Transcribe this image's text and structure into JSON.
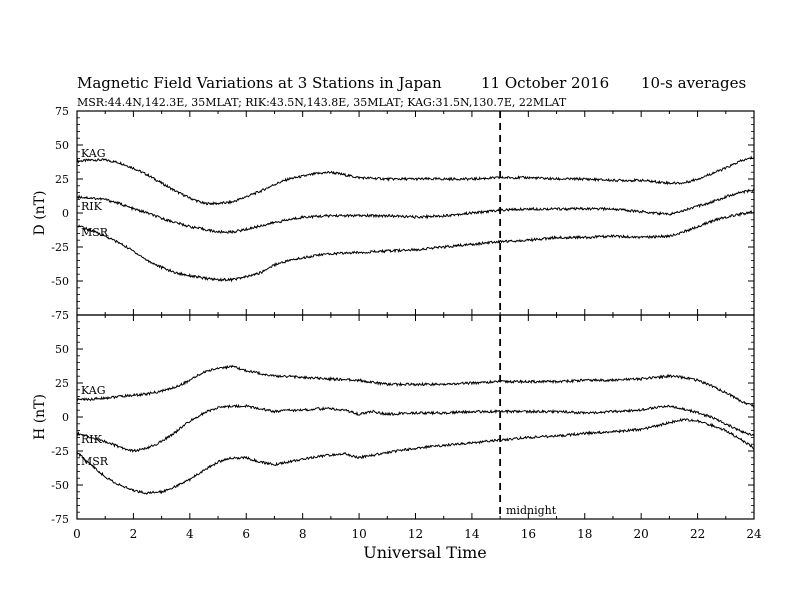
{
  "header": {
    "title": "Magnetic Field Variations at 3 Stations in Japan",
    "date": "11 October 2016",
    "averaging": "10-s averages",
    "stations_line": "MSR:44.4N,142.3E, 35MLAT;  RIK:43.5N,143.8E, 35MLAT;  KAG:31.5N,130.7E, 22MLAT"
  },
  "chart_data": [
    {
      "type": "line",
      "panel": "top",
      "ylabel": "D (nT)",
      "ylim": [
        -75,
        75
      ],
      "yticks": [
        75,
        50,
        25,
        0,
        -25,
        -50,
        -75
      ],
      "xlim": [
        0,
        24
      ],
      "grid": false,
      "marker": {
        "x": 15,
        "style": "dashed"
      },
      "series": [
        {
          "name": "KAG",
          "x": [
            0,
            0.5,
            1,
            1.5,
            2,
            2.5,
            3,
            3.5,
            4,
            4.5,
            5,
            5.5,
            6,
            6.5,
            7,
            7.5,
            8,
            8.5,
            9,
            9.5,
            10,
            11,
            12,
            13,
            14,
            15,
            16,
            17,
            18,
            19,
            20,
            20.5,
            21,
            21.5,
            22,
            22.5,
            23,
            23.5,
            24
          ],
          "y": [
            38,
            39,
            39,
            37,
            33,
            28,
            22,
            16,
            11,
            7,
            7,
            8,
            12,
            16,
            21,
            25,
            27,
            29,
            30,
            28,
            26,
            25,
            25,
            25,
            25,
            26,
            26,
            25,
            25,
            24,
            24,
            23,
            22,
            22,
            25,
            29,
            33,
            38,
            41
          ]
        },
        {
          "name": "RIK",
          "x": [
            0,
            0.5,
            1,
            1.5,
            2,
            2.5,
            3,
            3.5,
            4,
            4.5,
            5,
            5.5,
            6,
            7,
            8,
            9,
            10,
            11,
            12,
            13,
            14,
            15,
            16,
            17,
            18,
            19,
            20,
            21,
            21.5,
            22,
            22.5,
            23,
            23.5,
            24
          ],
          "y": [
            12,
            11,
            10,
            7,
            3,
            0,
            -4,
            -7,
            -10,
            -12,
            -14,
            -14,
            -12,
            -7,
            -3,
            -2,
            -2,
            -2,
            -3,
            -2,
            0,
            2,
            3,
            3,
            3,
            3,
            1,
            -1,
            2,
            5,
            8,
            12,
            15,
            17
          ]
        },
        {
          "name": "MSR",
          "x": [
            0,
            0.5,
            1,
            1.5,
            2,
            2.5,
            3,
            3.5,
            4,
            4.5,
            5,
            5.5,
            6,
            6.5,
            7,
            7.5,
            8,
            8.5,
            9,
            10,
            11,
            12,
            13,
            14,
            15,
            16,
            17,
            18,
            19,
            20,
            21,
            21.5,
            22,
            22.5,
            23,
            23.5,
            24
          ],
          "y": [
            -9,
            -13,
            -17,
            -22,
            -28,
            -35,
            -40,
            -44,
            -46,
            -48,
            -49,
            -49,
            -47,
            -44,
            -38,
            -35,
            -33,
            -31,
            -30,
            -29,
            -28,
            -27,
            -25,
            -23,
            -21,
            -20,
            -18,
            -18,
            -17,
            -18,
            -17,
            -14,
            -10,
            -6,
            -3,
            -1,
            1
          ]
        }
      ],
      "labels": [
        {
          "text": "KAG",
          "series": "KAG"
        },
        {
          "text": "RIK",
          "series": "RIK"
        },
        {
          "text": "MSR",
          "series": "MSR"
        }
      ]
    },
    {
      "type": "line",
      "panel": "bottom",
      "ylabel": "H (nT)",
      "xlabel": "Universal Time",
      "ylim": [
        -75,
        75
      ],
      "yticks": [
        50,
        25,
        0,
        -25,
        -50,
        -75
      ],
      "xlim": [
        0,
        24
      ],
      "xticks": [
        0,
        2,
        4,
        6,
        8,
        10,
        12,
        14,
        16,
        18,
        20,
        22,
        24
      ],
      "grid": false,
      "marker": {
        "x": 15,
        "style": "dashed",
        "label": "midnight"
      },
      "series": [
        {
          "name": "KAG",
          "x": [
            0,
            0.5,
            1,
            1.5,
            2,
            2.5,
            3,
            3.5,
            4,
            4.5,
            5,
            5.5,
            6,
            6.5,
            7,
            7.5,
            8,
            9,
            10,
            11,
            12,
            13,
            14,
            15,
            16,
            17,
            18,
            19,
            20,
            20.5,
            21,
            21.5,
            22,
            22.5,
            23,
            23.5,
            24
          ],
          "y": [
            13,
            13,
            14,
            15,
            16,
            17,
            19,
            22,
            27,
            33,
            36,
            37,
            34,
            32,
            30,
            30,
            29,
            28,
            27,
            24,
            24,
            24,
            25,
            26,
            26,
            26,
            27,
            27,
            28,
            29,
            30,
            29,
            27,
            23,
            18,
            12,
            8
          ]
        },
        {
          "name": "RIK",
          "x": [
            0,
            0.5,
            1,
            1.5,
            2,
            2.5,
            3,
            3.5,
            4,
            4.5,
            5,
            5.5,
            6,
            6.5,
            7,
            7.5,
            8,
            8.5,
            9,
            9.5,
            10,
            10.5,
            11,
            12,
            13,
            14,
            15,
            16,
            17,
            18,
            19,
            20,
            20.5,
            21,
            21.5,
            22,
            22.5,
            23,
            23.5,
            24
          ],
          "y": [
            -12,
            -15,
            -18,
            -22,
            -25,
            -23,
            -18,
            -11,
            -3,
            3,
            7,
            8,
            8,
            6,
            4,
            5,
            5,
            6,
            6,
            5,
            2,
            4,
            2,
            3,
            3,
            4,
            4,
            4,
            4,
            3,
            4,
            5,
            7,
            8,
            6,
            3,
            0,
            -5,
            -10,
            -14
          ]
        },
        {
          "name": "MSR",
          "x": [
            0,
            0.5,
            1,
            1.5,
            2,
            2.5,
            3,
            3.5,
            4,
            4.5,
            5,
            5.5,
            6,
            6.5,
            7,
            7.5,
            8,
            8.5,
            9,
            9.5,
            10,
            10.5,
            11,
            12,
            13,
            14,
            15,
            16,
            17,
            18,
            19,
            20,
            20.5,
            21,
            21.5,
            22,
            22.5,
            23,
            23.5,
            24
          ],
          "y": [
            -26,
            -35,
            -44,
            -50,
            -54,
            -56,
            -55,
            -51,
            -46,
            -39,
            -33,
            -30,
            -30,
            -33,
            -35,
            -33,
            -31,
            -29,
            -28,
            -27,
            -30,
            -28,
            -26,
            -23,
            -21,
            -19,
            -17,
            -15,
            -14,
            -12,
            -11,
            -9,
            -7,
            -4,
            -2,
            -3,
            -6,
            -10,
            -16,
            -23
          ]
        }
      ],
      "labels": [
        {
          "text": "KAG",
          "series": "KAG"
        },
        {
          "text": "RIK",
          "series": "RIK"
        },
        {
          "text": "MSR",
          "series": "MSR"
        }
      ]
    }
  ]
}
